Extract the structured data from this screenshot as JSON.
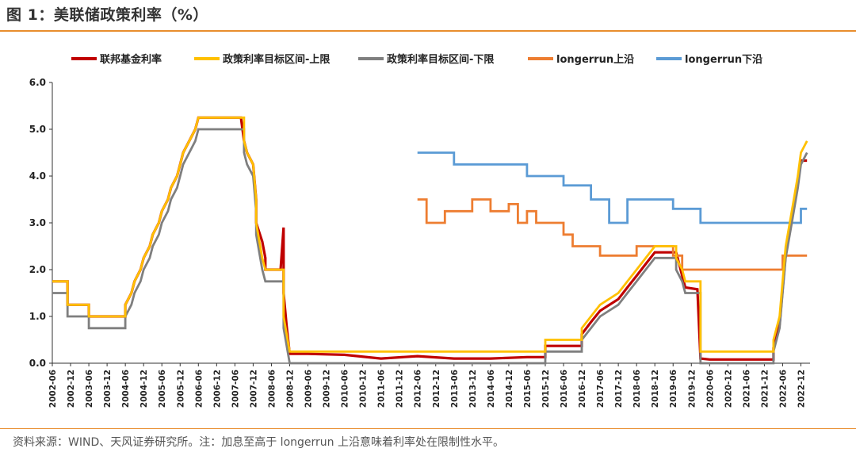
{
  "header": {
    "title": "图 1：美联储政策利率（%）"
  },
  "footer": {
    "source": "资料来源：WIND、天风证券研究所。注：加息至高于 longerrun 上沿意味着利率处在限制性水平。"
  },
  "chart_data": {
    "type": "line",
    "title": "图 1：美联储政策利率（%）",
    "xlabel": "",
    "ylabel": "",
    "ylim": [
      0,
      6
    ],
    "yticks": [
      "0.0",
      "1.0",
      "2.0",
      "3.0",
      "4.0",
      "5.0",
      "6.0"
    ],
    "xlim": [
      "2002-06",
      "2023-03"
    ],
    "xticks": [
      "2002-06",
      "2002-12",
      "2003-06",
      "2003-12",
      "2004-06",
      "2004-12",
      "2005-06",
      "2005-12",
      "2006-06",
      "2006-12",
      "2007-06",
      "2007-12",
      "2008-06",
      "2008-12",
      "2009-06",
      "2009-12",
      "2010-06",
      "2010-12",
      "2011-06",
      "2011-12",
      "2012-06",
      "2012-12",
      "2013-06",
      "2013-12",
      "2014-06",
      "2014-12",
      "2015-06",
      "2015-12",
      "2016-06",
      "2016-12",
      "2017-06",
      "2017-12",
      "2018-06",
      "2018-12",
      "2019-06",
      "2019-12",
      "2020-06",
      "2020-12",
      "2021-06",
      "2021-12",
      "2022-06",
      "2022-12"
    ],
    "grid": false,
    "legend_position": "top",
    "series": [
      {
        "name": "联邦基金利率",
        "color": "#c00000",
        "points": [
          [
            "2002-06",
            1.75
          ],
          [
            "2002-11",
            1.75
          ],
          [
            "2002-11",
            1.25
          ],
          [
            "2003-06",
            1.25
          ],
          [
            "2003-06",
            1.0
          ],
          [
            "2004-06",
            1.0
          ],
          [
            "2004-06",
            1.25
          ],
          [
            "2004-08",
            1.5
          ],
          [
            "2004-09",
            1.75
          ],
          [
            "2004-11",
            2.0
          ],
          [
            "2004-12",
            2.25
          ],
          [
            "2005-02",
            2.5
          ],
          [
            "2005-03",
            2.75
          ],
          [
            "2005-05",
            3.0
          ],
          [
            "2005-06",
            3.25
          ],
          [
            "2005-08",
            3.5
          ],
          [
            "2005-09",
            3.75
          ],
          [
            "2005-11",
            4.0
          ],
          [
            "2005-12",
            4.25
          ],
          [
            "2006-01",
            4.5
          ],
          [
            "2006-03",
            4.75
          ],
          [
            "2006-05",
            5.0
          ],
          [
            "2006-06",
            5.25
          ],
          [
            "2007-08",
            5.25
          ],
          [
            "2007-09",
            4.75
          ],
          [
            "2007-10",
            4.5
          ],
          [
            "2007-12",
            4.25
          ],
          [
            "2008-01",
            3.5
          ],
          [
            "2008-01",
            3.0
          ],
          [
            "2008-03",
            2.6
          ],
          [
            "2008-04",
            2.25
          ],
          [
            "2008-04",
            2.0
          ],
          [
            "2008-09",
            2.0
          ],
          [
            "2008-10",
            2.9
          ],
          [
            "2008-10",
            1.5
          ],
          [
            "2008-11",
            0.8
          ],
          [
            "2008-12",
            0.2
          ],
          [
            "2009-06",
            0.2
          ],
          [
            "2010-06",
            0.18
          ],
          [
            "2011-06",
            0.1
          ],
          [
            "2012-06",
            0.15
          ],
          [
            "2013-06",
            0.1
          ],
          [
            "2014-06",
            0.1
          ],
          [
            "2015-06",
            0.13
          ],
          [
            "2015-12",
            0.13
          ],
          [
            "2015-12",
            0.37
          ],
          [
            "2016-12",
            0.37
          ],
          [
            "2016-12",
            0.62
          ],
          [
            "2017-03",
            0.88
          ],
          [
            "2017-06",
            1.12
          ],
          [
            "2017-12",
            1.37
          ],
          [
            "2018-03",
            1.62
          ],
          [
            "2018-06",
            1.87
          ],
          [
            "2018-09",
            2.12
          ],
          [
            "2018-12",
            2.37
          ],
          [
            "2019-07",
            2.37
          ],
          [
            "2019-08",
            2.12
          ],
          [
            "2019-09",
            1.87
          ],
          [
            "2019-10",
            1.62
          ],
          [
            "2020-02",
            1.58
          ],
          [
            "2020-03",
            0.1
          ],
          [
            "2020-06",
            0.08
          ],
          [
            "2021-06",
            0.08
          ],
          [
            "2022-03",
            0.08
          ],
          [
            "2022-03",
            0.33
          ],
          [
            "2022-05",
            0.83
          ],
          [
            "2022-06",
            1.58
          ],
          [
            "2022-07",
            2.33
          ],
          [
            "2022-09",
            3.08
          ],
          [
            "2022-11",
            3.83
          ],
          [
            "2022-12",
            4.33
          ],
          [
            "2023-02",
            4.33
          ]
        ]
      },
      {
        "name": "政策利率目标区间-上限",
        "color": "#ffc000",
        "points": [
          [
            "2002-06",
            1.75
          ],
          [
            "2002-11",
            1.75
          ],
          [
            "2002-11",
            1.25
          ],
          [
            "2003-06",
            1.25
          ],
          [
            "2003-06",
            1.0
          ],
          [
            "2004-06",
            1.0
          ],
          [
            "2004-06",
            1.25
          ],
          [
            "2004-08",
            1.5
          ],
          [
            "2004-09",
            1.75
          ],
          [
            "2004-11",
            2.0
          ],
          [
            "2004-12",
            2.25
          ],
          [
            "2005-02",
            2.5
          ],
          [
            "2005-03",
            2.75
          ],
          [
            "2005-05",
            3.0
          ],
          [
            "2005-06",
            3.25
          ],
          [
            "2005-08",
            3.5
          ],
          [
            "2005-09",
            3.75
          ],
          [
            "2005-11",
            4.0
          ],
          [
            "2005-12",
            4.25
          ],
          [
            "2006-01",
            4.5
          ],
          [
            "2006-03",
            4.75
          ],
          [
            "2006-05",
            5.0
          ],
          [
            "2006-06",
            5.25
          ],
          [
            "2007-09",
            5.25
          ],
          [
            "2007-09",
            4.75
          ],
          [
            "2007-10",
            4.5
          ],
          [
            "2007-12",
            4.25
          ],
          [
            "2008-01",
            3.5
          ],
          [
            "2008-01",
            3.0
          ],
          [
            "2008-03",
            2.25
          ],
          [
            "2008-04",
            2.0
          ],
          [
            "2008-10",
            2.0
          ],
          [
            "2008-10",
            1.5
          ],
          [
            "2008-10",
            1.0
          ],
          [
            "2008-12",
            0.25
          ],
          [
            "2015-12",
            0.25
          ],
          [
            "2015-12",
            0.5
          ],
          [
            "2016-12",
            0.5
          ],
          [
            "2016-12",
            0.75
          ],
          [
            "2017-03",
            1.0
          ],
          [
            "2017-06",
            1.25
          ],
          [
            "2017-12",
            1.5
          ],
          [
            "2018-03",
            1.75
          ],
          [
            "2018-06",
            2.0
          ],
          [
            "2018-09",
            2.25
          ],
          [
            "2018-12",
            2.5
          ],
          [
            "2019-07",
            2.5
          ],
          [
            "2019-07",
            2.25
          ],
          [
            "2019-09",
            2.0
          ],
          [
            "2019-10",
            1.75
          ],
          [
            "2020-03",
            1.75
          ],
          [
            "2020-03",
            0.25
          ],
          [
            "2022-03",
            0.25
          ],
          [
            "2022-03",
            0.5
          ],
          [
            "2022-05",
            1.0
          ],
          [
            "2022-06",
            1.75
          ],
          [
            "2022-07",
            2.5
          ],
          [
            "2022-09",
            3.25
          ],
          [
            "2022-11",
            4.0
          ],
          [
            "2022-12",
            4.5
          ],
          [
            "2023-02",
            4.75
          ]
        ]
      },
      {
        "name": "政策利率目标区间-下限",
        "color": "#7f7f7f",
        "points": [
          [
            "2002-06",
            1.5
          ],
          [
            "2002-11",
            1.5
          ],
          [
            "2002-11",
            1.0
          ],
          [
            "2003-06",
            1.0
          ],
          [
            "2003-06",
            0.75
          ],
          [
            "2004-06",
            0.75
          ],
          [
            "2004-06",
            1.0
          ],
          [
            "2004-08",
            1.25
          ],
          [
            "2004-09",
            1.5
          ],
          [
            "2004-11",
            1.75
          ],
          [
            "2004-12",
            2.0
          ],
          [
            "2005-02",
            2.25
          ],
          [
            "2005-03",
            2.5
          ],
          [
            "2005-05",
            2.75
          ],
          [
            "2005-06",
            3.0
          ],
          [
            "2005-08",
            3.25
          ],
          [
            "2005-09",
            3.5
          ],
          [
            "2005-11",
            3.75
          ],
          [
            "2005-12",
            4.0
          ],
          [
            "2006-01",
            4.25
          ],
          [
            "2006-03",
            4.5
          ],
          [
            "2006-05",
            4.75
          ],
          [
            "2006-06",
            5.0
          ],
          [
            "2007-09",
            5.0
          ],
          [
            "2007-09",
            4.5
          ],
          [
            "2007-10",
            4.25
          ],
          [
            "2007-12",
            4.0
          ],
          [
            "2008-01",
            3.25
          ],
          [
            "2008-01",
            2.75
          ],
          [
            "2008-03",
            2.0
          ],
          [
            "2008-04",
            1.75
          ],
          [
            "2008-10",
            1.75
          ],
          [
            "2008-10",
            1.25
          ],
          [
            "2008-10",
            0.75
          ],
          [
            "2008-12",
            0.0
          ],
          [
            "2015-12",
            0.0
          ],
          [
            "2015-12",
            0.25
          ],
          [
            "2016-12",
            0.25
          ],
          [
            "2016-12",
            0.5
          ],
          [
            "2017-03",
            0.75
          ],
          [
            "2017-06",
            1.0
          ],
          [
            "2017-12",
            1.25
          ],
          [
            "2018-03",
            1.5
          ],
          [
            "2018-06",
            1.75
          ],
          [
            "2018-09",
            2.0
          ],
          [
            "2018-12",
            2.25
          ],
          [
            "2019-07",
            2.25
          ],
          [
            "2019-07",
            2.0
          ],
          [
            "2019-09",
            1.75
          ],
          [
            "2019-10",
            1.5
          ],
          [
            "2020-03",
            1.5
          ],
          [
            "2020-03",
            0.0
          ],
          [
            "2022-03",
            0.0
          ],
          [
            "2022-03",
            0.25
          ],
          [
            "2022-05",
            0.75
          ],
          [
            "2022-06",
            1.5
          ],
          [
            "2022-07",
            2.25
          ],
          [
            "2022-09",
            3.0
          ],
          [
            "2022-11",
            3.75
          ],
          [
            "2022-12",
            4.25
          ],
          [
            "2023-02",
            4.5
          ]
        ]
      },
      {
        "name": "longerrun上沿",
        "color": "#ed7d31",
        "points": [
          [
            "2012-06",
            3.5
          ],
          [
            "2012-09",
            3.5
          ],
          [
            "2012-09",
            3.0
          ],
          [
            "2013-03",
            3.0
          ],
          [
            "2013-03",
            3.25
          ],
          [
            "2013-12",
            3.25
          ],
          [
            "2013-12",
            3.5
          ],
          [
            "2014-06",
            3.5
          ],
          [
            "2014-06",
            3.25
          ],
          [
            "2014-12",
            3.25
          ],
          [
            "2014-12",
            3.4
          ],
          [
            "2015-03",
            3.4
          ],
          [
            "2015-03",
            3.0
          ],
          [
            "2015-06",
            3.0
          ],
          [
            "2015-06",
            3.25
          ],
          [
            "2015-09",
            3.25
          ],
          [
            "2015-09",
            3.0
          ],
          [
            "2016-06",
            3.0
          ],
          [
            "2016-06",
            2.75
          ],
          [
            "2016-09",
            2.75
          ],
          [
            "2016-09",
            2.5
          ],
          [
            "2017-06",
            2.5
          ],
          [
            "2017-06",
            2.3
          ],
          [
            "2018-06",
            2.3
          ],
          [
            "2018-06",
            2.5
          ],
          [
            "2019-06",
            2.5
          ],
          [
            "2019-06",
            2.3
          ],
          [
            "2019-09",
            2.3
          ],
          [
            "2019-09",
            2.0
          ],
          [
            "2022-06",
            2.0
          ],
          [
            "2022-06",
            2.3
          ],
          [
            "2023-02",
            2.3
          ]
        ]
      },
      {
        "name": "longerrun下沿",
        "color": "#5b9bd5",
        "points": [
          [
            "2012-06",
            4.5
          ],
          [
            "2013-06",
            4.5
          ],
          [
            "2013-06",
            4.25
          ],
          [
            "2015-06",
            4.25
          ],
          [
            "2015-06",
            4.0
          ],
          [
            "2016-06",
            4.0
          ],
          [
            "2016-06",
            3.8
          ],
          [
            "2017-03",
            3.8
          ],
          [
            "2017-03",
            3.5
          ],
          [
            "2017-09",
            3.5
          ],
          [
            "2017-09",
            3.0
          ],
          [
            "2018-03",
            3.0
          ],
          [
            "2018-03",
            3.5
          ],
          [
            "2019-06",
            3.5
          ],
          [
            "2019-06",
            3.3
          ],
          [
            "2020-03",
            3.3
          ],
          [
            "2020-03",
            3.0
          ],
          [
            "2022-12",
            3.0
          ],
          [
            "2022-12",
            3.3
          ],
          [
            "2023-02",
            3.3
          ]
        ]
      }
    ]
  }
}
